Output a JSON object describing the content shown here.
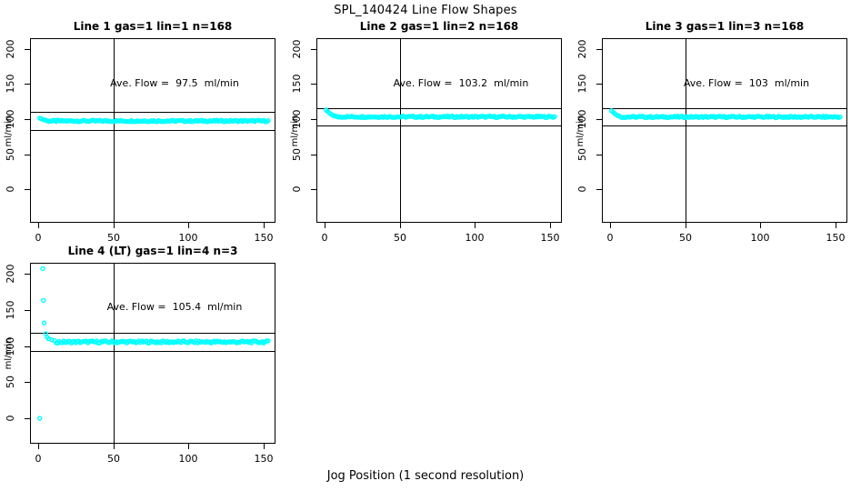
{
  "figure": {
    "title": "SPL_140424  Line Flow Shapes",
    "x_axis_title": "Jog Position (1 second resolution)"
  },
  "chart_data": {
    "type": "scatter",
    "title": "SPL_140424  Line Flow Shapes",
    "xlabel": "Jog Position (1 second resolution)",
    "ylabel": "ml/min",
    "x_ticks": [
      0,
      50,
      100,
      150
    ],
    "y_ticks": [
      0,
      50,
      100,
      150,
      200
    ],
    "x_range": [
      -5,
      157
    ],
    "y_range": [
      -50,
      210
    ],
    "grid": false,
    "point_color": "#00ffff",
    "line_color": "#000000",
    "reference_vline_x": 50,
    "panels": [
      {
        "title": "Line 1 gas=1 lin=1 n=168",
        "line": 1,
        "gas": 1,
        "lin": 1,
        "n": 168,
        "ave_flow_ml_min": 97.5,
        "annotation": "Ave. Flow =  97.5  ml/min",
        "ref_line_upper": 111,
        "ref_line_lower": 84,
        "transient_points": [
          [
            1,
            101.5
          ],
          [
            2,
            100.5
          ],
          [
            3,
            99.5
          ],
          [
            4,
            99
          ],
          [
            5,
            98.5
          ]
        ],
        "steady_band": {
          "x_start": 6,
          "x_end": 153,
          "value": 97.4,
          "jitter": 1.1
        }
      },
      {
        "title": "Line 2 gas=1 lin=2 n=168",
        "line": 2,
        "gas": 1,
        "lin": 2,
        "n": 168,
        "ave_flow_ml_min": 103.2,
        "annotation": "Ave. Flow =  103.2  ml/min",
        "ref_line_upper": 116,
        "ref_line_lower": 91,
        "transient_points": [
          [
            1,
            113
          ],
          [
            2,
            111
          ],
          [
            3,
            109
          ],
          [
            4,
            107.5
          ],
          [
            5,
            106
          ],
          [
            6,
            105
          ],
          [
            7,
            104.5
          ]
        ],
        "steady_band": {
          "x_start": 8,
          "x_end": 153,
          "value": 103.3,
          "jitter": 1.1
        }
      },
      {
        "title": "Line 3 gas=1 lin=3 n=168",
        "line": 3,
        "gas": 1,
        "lin": 3,
        "n": 168,
        "ave_flow_ml_min": 103,
        "annotation": "Ave. Flow =  103  ml/min",
        "ref_line_upper": 116,
        "ref_line_lower": 91,
        "transient_points": [
          [
            1,
            112
          ],
          [
            2,
            110
          ],
          [
            3,
            108
          ],
          [
            4,
            106.5
          ],
          [
            5,
            105
          ],
          [
            6,
            104.5
          ]
        ],
        "steady_band": {
          "x_start": 7,
          "x_end": 153,
          "value": 103.1,
          "jitter": 1.1
        }
      },
      {
        "title": "Line 4 (LT) gas=1 lin=4 n=3",
        "line": 4,
        "lt": true,
        "gas": 1,
        "lin": 4,
        "n": 3,
        "ave_flow_ml_min": 105.4,
        "annotation": "Ave. Flow =  105.4  ml/min",
        "ref_line_upper": 118,
        "ref_line_lower": 93,
        "transient_points": [
          [
            1,
            0
          ],
          [
            3,
            207
          ],
          [
            3.5,
            163
          ],
          [
            4,
            132
          ],
          [
            5,
            117
          ],
          [
            6,
            112
          ],
          [
            7,
            110
          ],
          [
            9,
            108.5
          ],
          [
            11,
            107.5
          ]
        ],
        "steady_band": {
          "x_start": 12,
          "x_end": 153,
          "value": 105.6,
          "jitter": 1.6
        }
      }
    ]
  }
}
